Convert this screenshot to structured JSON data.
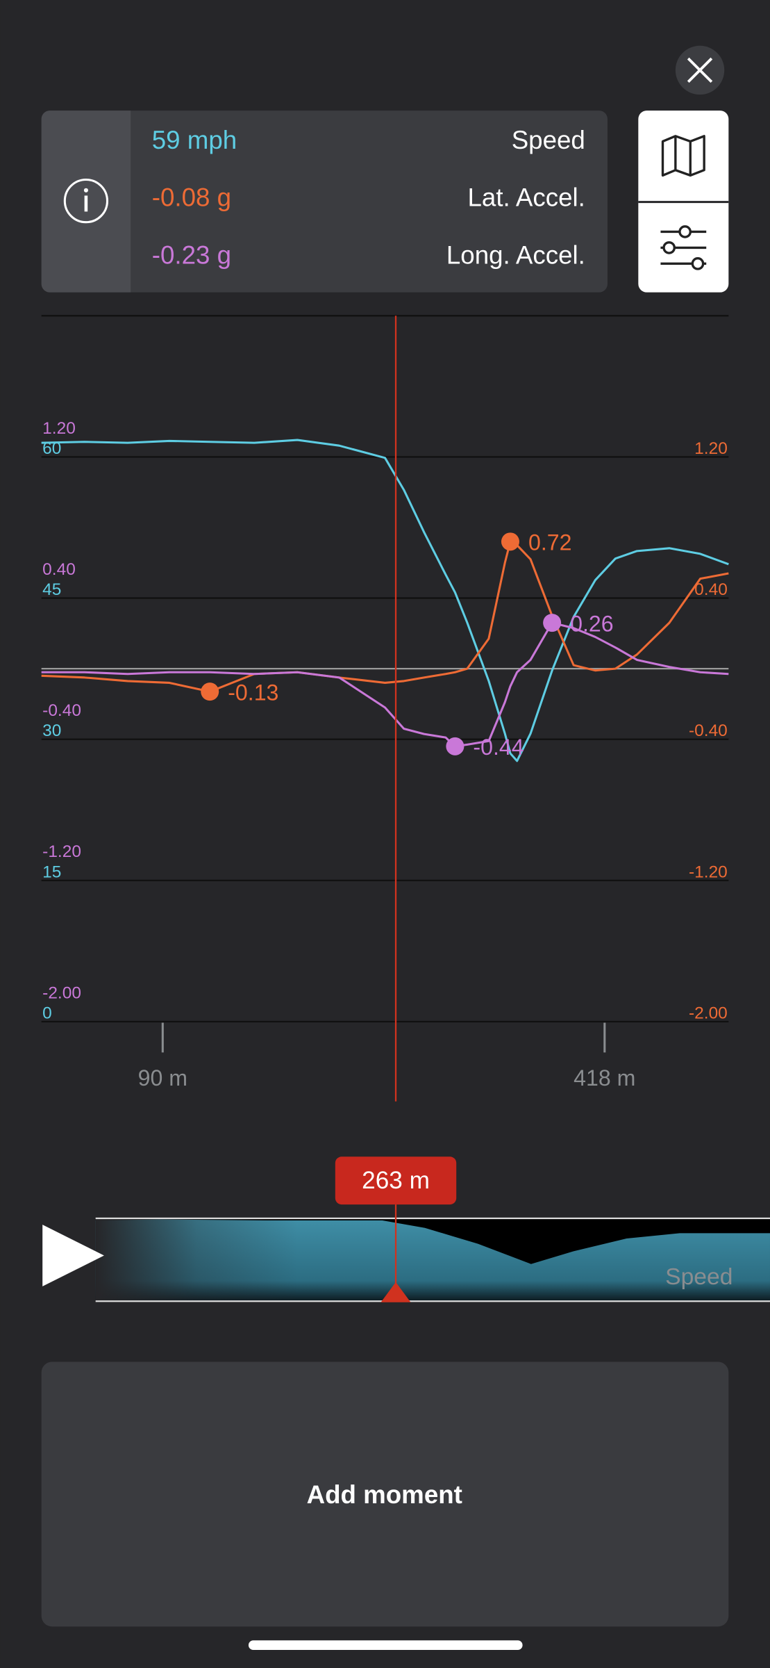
{
  "header": {
    "readouts": [
      {
        "value": "59 mph",
        "label": "Speed"
      },
      {
        "value": "-0.08 g",
        "label": "Lat. Accel."
      },
      {
        "value": "-0.23 g",
        "label": "Long. Accel."
      }
    ]
  },
  "chart_data": {
    "type": "line",
    "x": [
      0,
      32,
      64,
      95,
      125,
      158,
      190,
      221,
      255,
      269,
      284,
      300,
      307,
      316,
      332,
      344,
      348,
      353,
      363,
      379,
      395,
      411,
      426,
      442,
      466,
      489,
      510
    ],
    "xlim": [
      0,
      510
    ],
    "xticks": [
      {
        "value": 90,
        "label": "90 m"
      },
      {
        "value": 418,
        "label": "418 m"
      }
    ],
    "ylim": [
      0,
      75
    ],
    "yticks": [
      0,
      15,
      30,
      45,
      60
    ],
    "y2lim": [
      -2,
      2
    ],
    "y2ticks": [
      {
        "value": -2,
        "label": "-2.00"
      },
      {
        "value": -1.2,
        "label": "-1.20"
      },
      {
        "value": -0.4,
        "label": "-0.40"
      },
      {
        "value": 0.4,
        "label": "0.40"
      },
      {
        "value": 1.2,
        "label": "1.20"
      }
    ],
    "y3lim": [
      -2,
      2
    ],
    "y3ticks": [
      {
        "value": -2,
        "label": "-2.00"
      },
      {
        "value": -1.2,
        "label": "-1.20"
      },
      {
        "value": -0.4,
        "label": "-0.40"
      },
      {
        "value": 0.4,
        "label": "0.40"
      },
      {
        "value": 1.2,
        "label": "1.20"
      }
    ],
    "series": [
      {
        "color": "#5ecde3",
        "axis": "y",
        "values": [
          61.5,
          61.6,
          61.5,
          61.7,
          61.6,
          61.5,
          61.8,
          61.2,
          59.9,
          56.5,
          52.0,
          47.5,
          45.6,
          42.4,
          36.2,
          30.6,
          28.5,
          27.7,
          30.6,
          37.3,
          43.0,
          46.9,
          49.2,
          50.0,
          50.3,
          49.7,
          48.6
        ]
      },
      {
        "color": "#ee6b35",
        "axis": "y2",
        "values": [
          -0.04,
          -0.05,
          -0.07,
          -0.08,
          -0.13,
          -0.03,
          -0.02,
          -0.05,
          -0.08,
          -0.07,
          -0.05,
          -0.03,
          -0.02,
          0.0,
          0.17,
          0.6,
          0.72,
          0.7,
          0.62,
          0.3,
          0.02,
          -0.01,
          0.0,
          0.08,
          0.26,
          0.51,
          0.54
        ],
        "value_labels": [
          null,
          null,
          null,
          null,
          "-0.13",
          null,
          null,
          null,
          null,
          null,
          null,
          null,
          null,
          null,
          null,
          null,
          "0.72",
          null,
          null,
          null,
          null,
          null,
          null,
          null,
          null,
          null,
          null
        ]
      },
      {
        "color": "#c978d8",
        "axis": "y3",
        "values": [
          -0.02,
          -0.02,
          -0.03,
          -0.02,
          -0.02,
          -0.03,
          -0.02,
          -0.05,
          -0.22,
          -0.34,
          -0.37,
          -0.39,
          -0.44,
          -0.43,
          -0.41,
          -0.19,
          -0.1,
          -0.02,
          0.05,
          0.26,
          0.23,
          0.18,
          0.12,
          0.05,
          0.01,
          -0.02,
          -0.03
        ],
        "value_labels": [
          null,
          null,
          null,
          null,
          null,
          null,
          null,
          null,
          null,
          null,
          null,
          null,
          "-0.44",
          null,
          null,
          null,
          null,
          null,
          null,
          "0.26",
          null,
          null,
          null,
          null,
          null,
          null,
          null
        ]
      }
    ],
    "cursor": {
      "value": 263,
      "label": "263 m"
    }
  },
  "timeline": {
    "label": "Speed"
  },
  "button": {
    "label": "Add moment"
  }
}
